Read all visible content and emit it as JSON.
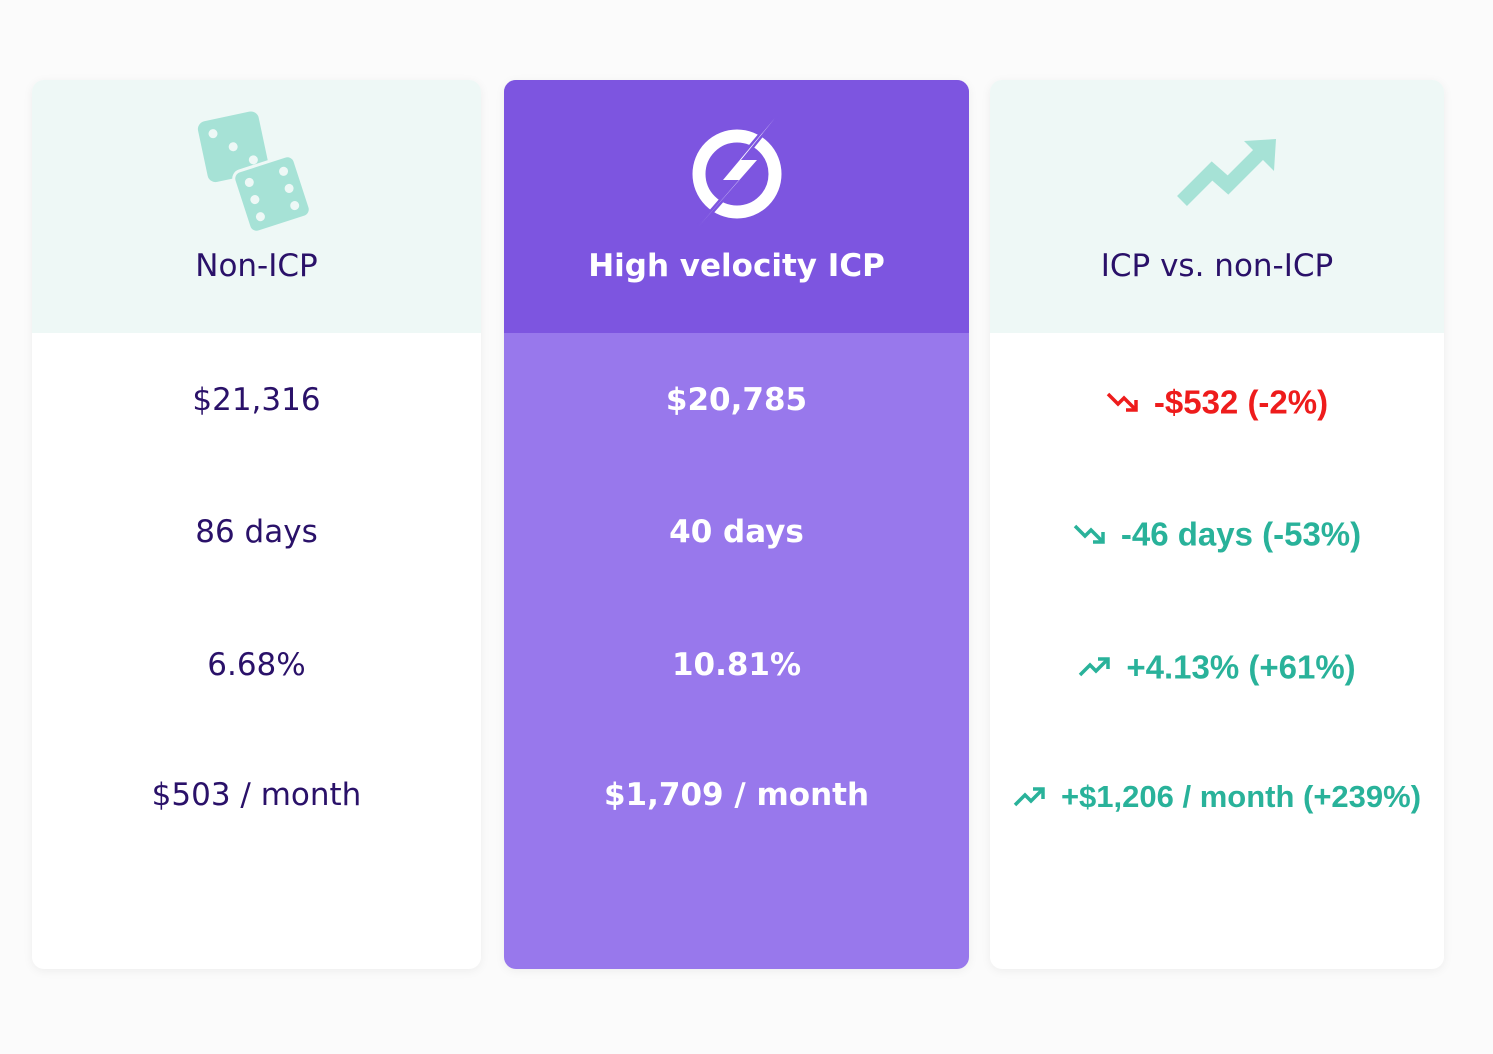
{
  "columns": [
    {
      "title": "Non-ICP",
      "icon": "dice-icon",
      "values": [
        "$21,316",
        "86 days",
        "6.68%",
        "$503 / month"
      ]
    },
    {
      "title": "High velocity ICP",
      "icon": "lightning-bolt-icon",
      "values": [
        "$20,785",
        "40 days",
        "10.81%",
        "$1,709 / month"
      ]
    },
    {
      "title": "ICP vs. non-ICP",
      "icon": "trending-up-arrow-icon",
      "values": [
        {
          "text": "-$532 (-2%)",
          "trend": "down",
          "color": "#ee1c1c"
        },
        {
          "text": "-46 days (-53%)",
          "trend": "down",
          "color": "#29b29a"
        },
        {
          "text": "+4.13% (+61%)",
          "trend": "up",
          "color": "#29b29a"
        },
        {
          "text": "+$1,206 / month (+239%)",
          "trend": "up",
          "color": "#29b29a"
        }
      ]
    }
  ],
  "colors": {
    "accent_purple": "#7d55e0",
    "light_purple": "#9878ec",
    "mint": "#eef8f6",
    "teal": "#29b29a",
    "red": "#ee1c1c",
    "navy": "#2a1169"
  }
}
